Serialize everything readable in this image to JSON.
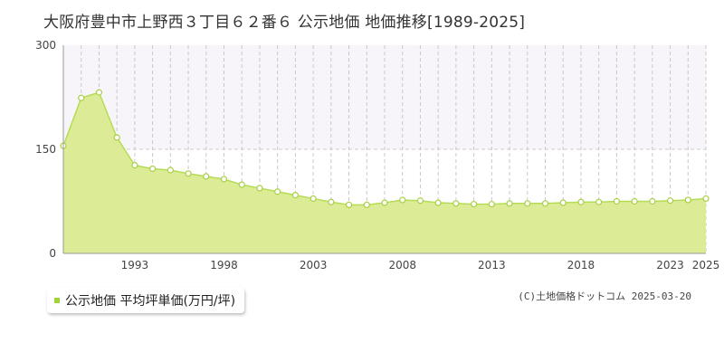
{
  "title": "大阪府豊中市上野西３丁目６２番６ 公示地価 地価推移[1989-2025]",
  "legend": {
    "label": "公示地価 平均坪単価(万円/坪)"
  },
  "credit": "(C)土地価格ドットコム 2025-03-20",
  "colors": {
    "area_fill": "#dcec96",
    "line": "#b4dc55",
    "marker": "#a8d044",
    "legend_swatch": "#a0d23a",
    "upper_band": "#f7f5f9"
  },
  "chart_data": {
    "type": "area",
    "x": [
      1989,
      1990,
      1991,
      1992,
      1993,
      1994,
      1995,
      1996,
      1997,
      1998,
      1999,
      2000,
      2001,
      2002,
      2003,
      2004,
      2005,
      2006,
      2007,
      2008,
      2009,
      2010,
      2011,
      2012,
      2013,
      2014,
      2015,
      2016,
      2017,
      2018,
      2019,
      2020,
      2021,
      2022,
      2023,
      2024,
      2025
    ],
    "series": [
      {
        "values": [
          155,
          224,
          232,
          167,
          127,
          122,
          120,
          115,
          111,
          107,
          99,
          94,
          89,
          84,
          79,
          74,
          70,
          70,
          73,
          77,
          76,
          73,
          72,
          71,
          71,
          72,
          72,
          72,
          73,
          74,
          74,
          75,
          75,
          75,
          76,
          77,
          79
        ]
      }
    ],
    "xticks": [
      "1993",
      "1998",
      "2003",
      "2008",
      "2013",
      "2018",
      "2023",
      "2025"
    ],
    "xtick_values": [
      1993,
      1998,
      2003,
      2008,
      2013,
      2018,
      2023,
      2025
    ],
    "yticks": [
      "0",
      "150",
      "300"
    ],
    "ytick_values": [
      0,
      150,
      300
    ],
    "ylim": [
      0,
      300
    ],
    "xlim": [
      1989,
      2025
    ],
    "grid": true
  }
}
